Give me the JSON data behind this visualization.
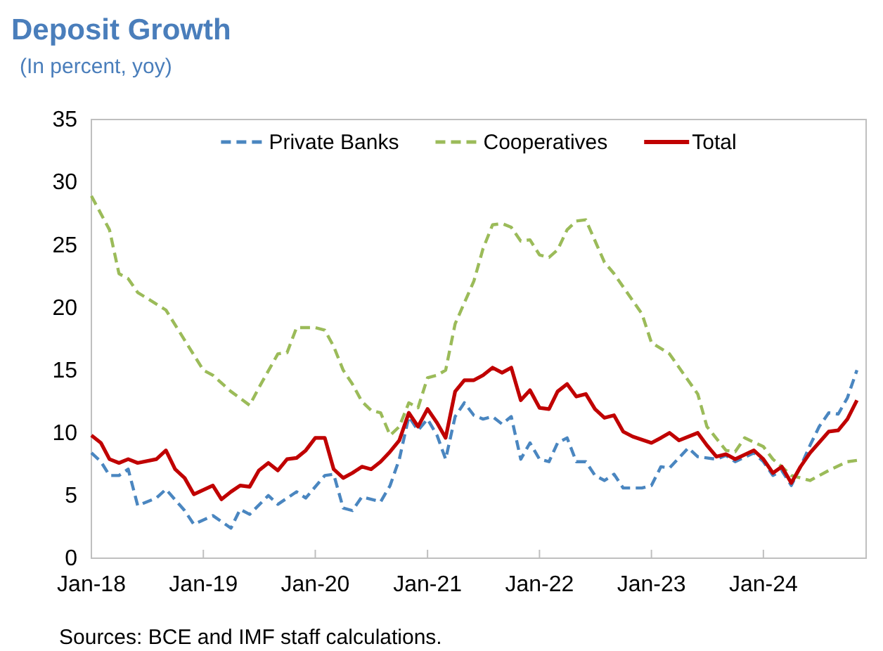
{
  "chart_data": {
    "type": "line",
    "title": "Deposit Growth",
    "subtitle": "(In percent, yoy)",
    "annotations": [
      "Sources: BCE and IMF staff calculations."
    ],
    "xlim": [
      "2018-01",
      "2024-12"
    ],
    "xticks": [
      {
        "value": "2018-01",
        "label": "Jan-18"
      },
      {
        "value": "2019-01",
        "label": "Jan-19"
      },
      {
        "value": "2020-01",
        "label": "Jan-20"
      },
      {
        "value": "2021-01",
        "label": "Jan-21"
      },
      {
        "value": "2022-01",
        "label": "Jan-22"
      },
      {
        "value": "2023-01",
        "label": "Jan-23"
      },
      {
        "value": "2024-01",
        "label": "Jan-24"
      }
    ],
    "ylim": [
      0,
      35
    ],
    "yticks": [
      0,
      5,
      10,
      15,
      20,
      25,
      30,
      35
    ],
    "grid": false,
    "legend": "top",
    "marker": "none",
    "series": [
      {
        "name": "Private Banks",
        "color": "#4a86c0",
        "line_style": "dashed",
        "x": [
          "2018-01",
          "2018-02",
          "2018-03",
          "2018-04",
          "2018-05",
          "2018-06",
          "2018-08",
          "2018-09",
          "2018-11",
          "2018-12",
          "2019-02",
          "2019-04",
          "2019-05",
          "2019-06",
          "2019-08",
          "2019-09",
          "2019-11",
          "2019-12",
          "2020-02",
          "2020-03",
          "2020-04",
          "2020-05",
          "2020-06",
          "2020-08",
          "2020-09",
          "2020-10",
          "2020-11",
          "2020-12",
          "2021-01",
          "2021-02",
          "2021-03",
          "2021-04",
          "2021-05",
          "2021-06",
          "2021-07",
          "2021-08",
          "2021-09",
          "2021-10",
          "2021-11",
          "2021-12",
          "2022-01",
          "2022-02",
          "2022-03",
          "2022-04",
          "2022-05",
          "2022-06",
          "2022-07",
          "2022-08",
          "2022-09",
          "2022-10",
          "2022-12",
          "2023-01",
          "2023-02",
          "2023-03",
          "2023-05",
          "2023-06",
          "2023-08",
          "2023-09",
          "2023-10",
          "2023-12",
          "2024-01",
          "2024-02",
          "2024-03",
          "2024-04",
          "2024-05",
          "2024-06",
          "2024-07",
          "2024-08",
          "2024-09",
          "2024-10",
          "2024-11"
        ],
        "values": [
          8.4,
          7.7,
          6.6,
          6.6,
          7.1,
          4.2,
          4.8,
          5.5,
          3.8,
          2.7,
          3.4,
          2.4,
          3.9,
          3.5,
          5.0,
          4.3,
          5.3,
          4.8,
          6.6,
          6.7,
          4.0,
          3.8,
          4.9,
          4.5,
          5.8,
          7.9,
          11.3,
          10.2,
          11.1,
          9.8,
          7.9,
          11.3,
          12.4,
          11.4,
          11.1,
          11.3,
          10.7,
          11.3,
          7.9,
          9.2,
          7.9,
          7.7,
          9.2,
          9.6,
          7.7,
          7.7,
          6.6,
          6.2,
          6.7,
          5.6,
          5.6,
          5.8,
          7.3,
          7.2,
          8.8,
          8.1,
          7.9,
          8.2,
          7.7,
          8.4,
          7.7,
          6.6,
          7.0,
          5.8,
          7.3,
          9.0,
          10.5,
          11.6,
          11.5,
          12.8,
          15.0
        ]
      },
      {
        "name": "Cooperatives",
        "color": "#9bbb59",
        "line_style": "dashed",
        "x": [
          "2018-01",
          "2018-03",
          "2018-04",
          "2018-05",
          "2018-06",
          "2018-09",
          "2019-01",
          "2019-02",
          "2019-04",
          "2019-06",
          "2019-07",
          "2019-09",
          "2019-10",
          "2019-11",
          "2020-01",
          "2020-02",
          "2020-03",
          "2020-04",
          "2020-05",
          "2020-06",
          "2020-07",
          "2020-08",
          "2020-09",
          "2020-10",
          "2020-11",
          "2020-12",
          "2021-01",
          "2021-02",
          "2021-03",
          "2021-04",
          "2021-06",
          "2021-07",
          "2021-08",
          "2021-09",
          "2021-10",
          "2021-11",
          "2021-12",
          "2022-01",
          "2022-02",
          "2022-03",
          "2022-04",
          "2022-05",
          "2022-06",
          "2022-08",
          "2022-09",
          "2022-12",
          "2023-01",
          "2023-03",
          "2023-06",
          "2023-07",
          "2023-09",
          "2023-10",
          "2023-11",
          "2024-01",
          "2024-02",
          "2024-03",
          "2024-04",
          "2024-06",
          "2024-08",
          "2024-10",
          "2024-11"
        ],
        "values": [
          28.9,
          26.2,
          22.7,
          22.3,
          21.2,
          19.8,
          15.0,
          14.6,
          13.3,
          12.2,
          13.6,
          16.3,
          16.4,
          18.4,
          18.4,
          18.2,
          16.9,
          15.0,
          13.9,
          12.5,
          11.8,
          11.6,
          9.8,
          10.5,
          12.4,
          12.0,
          14.4,
          14.6,
          15.0,
          18.7,
          22.1,
          24.7,
          26.6,
          26.7,
          26.4,
          25.3,
          25.4,
          24.2,
          24.0,
          24.6,
          26.2,
          26.9,
          27.0,
          23.6,
          22.7,
          19.5,
          17.2,
          16.3,
          13.1,
          10.5,
          8.6,
          8.5,
          9.6,
          8.9,
          7.9,
          7.3,
          6.6,
          6.2,
          7.0,
          7.7,
          7.8
        ]
      },
      {
        "name": "Total",
        "color": "#c00000",
        "line_style": "solid",
        "x": [
          "2018-01",
          "2018-02",
          "2018-03",
          "2018-04",
          "2018-05",
          "2018-06",
          "2018-08",
          "2018-09",
          "2018-10",
          "2018-11",
          "2018-12",
          "2019-02",
          "2019-03",
          "2019-04",
          "2019-05",
          "2019-06",
          "2019-07",
          "2019-08",
          "2019-09",
          "2019-10",
          "2019-11",
          "2019-12",
          "2020-01",
          "2020-02",
          "2020-03",
          "2020-04",
          "2020-05",
          "2020-06",
          "2020-07",
          "2020-08",
          "2020-09",
          "2020-10",
          "2020-11",
          "2020-12",
          "2021-01",
          "2021-02",
          "2021-03",
          "2021-04",
          "2021-05",
          "2021-06",
          "2021-07",
          "2021-08",
          "2021-09",
          "2021-10",
          "2021-11",
          "2021-12",
          "2022-01",
          "2022-02",
          "2022-03",
          "2022-04",
          "2022-05",
          "2022-06",
          "2022-07",
          "2022-08",
          "2022-09",
          "2022-10",
          "2022-11",
          "2023-01",
          "2023-02",
          "2023-03",
          "2023-04",
          "2023-06",
          "2023-07",
          "2023-08",
          "2023-09",
          "2023-10",
          "2023-12",
          "2024-01",
          "2024-02",
          "2024-03",
          "2024-04",
          "2024-05",
          "2024-06",
          "2024-08",
          "2024-09",
          "2024-10",
          "2024-11"
        ],
        "values": [
          9.8,
          9.2,
          7.9,
          7.6,
          7.9,
          7.6,
          7.9,
          8.6,
          7.1,
          6.4,
          5.1,
          5.8,
          4.7,
          5.3,
          5.8,
          5.7,
          7.0,
          7.6,
          7.0,
          7.9,
          8.0,
          8.6,
          9.6,
          9.6,
          7.1,
          6.4,
          6.8,
          7.3,
          7.1,
          7.7,
          8.5,
          9.4,
          11.6,
          10.5,
          11.9,
          10.8,
          9.6,
          13.3,
          14.2,
          14.2,
          14.6,
          15.2,
          14.8,
          15.2,
          12.6,
          13.4,
          12.0,
          11.9,
          13.3,
          13.9,
          12.9,
          13.1,
          11.9,
          11.2,
          11.4,
          10.1,
          9.7,
          9.2,
          9.6,
          10.0,
          9.4,
          10.0,
          9.0,
          8.1,
          8.3,
          7.9,
          8.6,
          7.9,
          6.8,
          7.3,
          6.0,
          7.3,
          8.4,
          10.1,
          10.2,
          11.1,
          12.6
        ]
      }
    ]
  }
}
